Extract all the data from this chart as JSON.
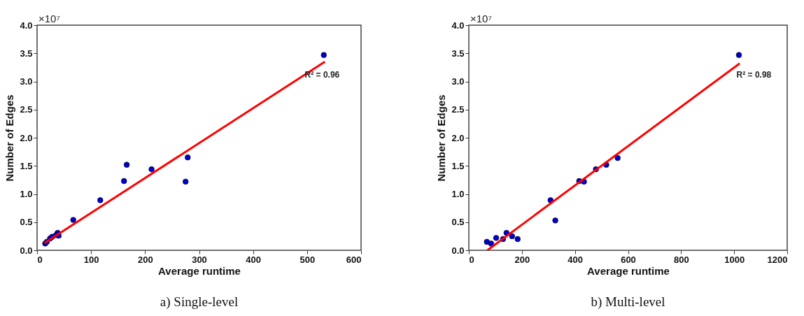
{
  "chart_data": [
    {
      "type": "scatter",
      "title": "a) Single-level",
      "xlabel": "Average runtime",
      "ylabel": "Number of Edges",
      "marker": "circle",
      "grid": false,
      "xlim": [
        0,
        600
      ],
      "xticks": [
        0,
        100,
        200,
        300,
        400,
        500,
        600
      ],
      "ylim": [
        0,
        4
      ],
      "yticks": [
        {
          "value": 0,
          "label": "0.0"
        },
        {
          "value": 0.5,
          "label": "0.5"
        },
        {
          "value": 1,
          "label": "1.0"
        },
        {
          "value": 1.5,
          "label": "1.5"
        },
        {
          "value": 2,
          "label": "2.0"
        },
        {
          "value": 2.5,
          "label": "2.5"
        },
        {
          "value": 3,
          "label": "3.0"
        },
        {
          "value": 3.5,
          "label": "3.5"
        },
        {
          "value": 4,
          "label": "4.0"
        }
      ],
      "series": [
        {
          "color": "#0000cc",
          "x": [
            15,
            18,
            24,
            28,
            35,
            38,
            40,
            67,
            117,
            161,
            166,
            212,
            275,
            279,
            531
          ],
          "values": [
            0.12,
            0.15,
            0.21,
            0.24,
            0.27,
            0.31,
            0.26,
            0.54,
            0.89,
            1.23,
            1.52,
            1.44,
            1.22,
            1.65,
            3.47
          ]
        },
        {
          "type": "line",
          "marker": "none",
          "color": "#ff0000",
          "x": [
            14,
            533
          ],
          "values": [
            0.13,
            3.35
          ]
        }
      ],
      "annotations": [
        "×10⁷",
        "R² = 0.96"
      ]
    },
    {
      "type": "scatter",
      "title": "b) Multi-level",
      "xlabel": "Average runtime",
      "ylabel": "Number of Edges",
      "marker": "circle",
      "grid": false,
      "xlim": [
        0,
        1200
      ],
      "xticks": [
        0,
        200,
        400,
        600,
        800,
        1000,
        1200
      ],
      "ylim": [
        0,
        4
      ],
      "yticks": [
        {
          "value": 0,
          "label": "0.0"
        },
        {
          "value": 0.5,
          "label": "0.5"
        },
        {
          "value": 1,
          "label": "1.0"
        },
        {
          "value": 1.5,
          "label": "1.5"
        },
        {
          "value": 2,
          "label": "2.0"
        },
        {
          "value": 2.5,
          "label": "2.5"
        },
        {
          "value": 3,
          "label": "3.0"
        },
        {
          "value": 3.5,
          "label": "3.5"
        },
        {
          "value": 4,
          "label": "4.0"
        }
      ],
      "series": [
        {
          "color": "#0000cc",
          "x": [
            68,
            84,
            103,
            129,
            142,
            163,
            184,
            308,
            326,
            416,
            434,
            479,
            518,
            561,
            1018
          ],
          "values": [
            0.15,
            0.12,
            0.22,
            0.2,
            0.31,
            0.25,
            0.2,
            0.89,
            0.53,
            1.23,
            1.22,
            1.44,
            1.52,
            1.64,
            3.47
          ]
        },
        {
          "type": "line",
          "marker": "none",
          "color": "#ff0000",
          "x": [
            70,
            1021
          ],
          "values": [
            0.0,
            3.32
          ]
        }
      ],
      "annotations": [
        "×10⁷",
        "R² = 0.98"
      ]
    }
  ]
}
